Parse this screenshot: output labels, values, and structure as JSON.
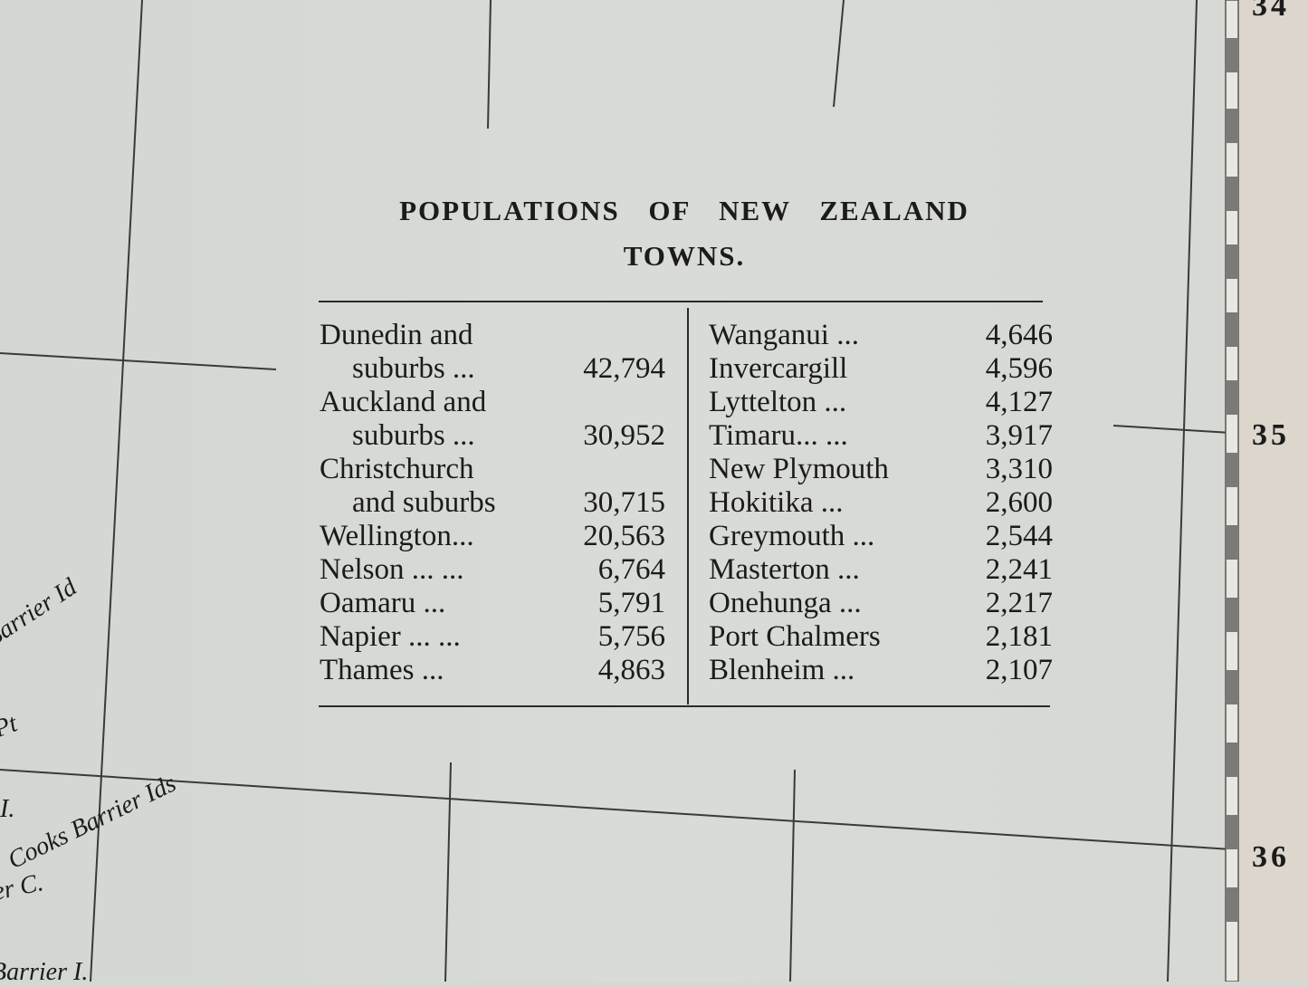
{
  "table": {
    "title_line1": "POPULATIONS OF NEW ZEALAND",
    "title_line2": "TOWNS.",
    "left": [
      {
        "lines": [
          "Dunedin and",
          "suburbs ..."
        ],
        "value": "42,794"
      },
      {
        "lines": [
          "Auckland and",
          "suburbs ..."
        ],
        "value": "30,952"
      },
      {
        "lines": [
          "Christchurch",
          "and suburbs"
        ],
        "value": "30,715"
      },
      {
        "lines": [
          "Wellington..."
        ],
        "value": "20,563"
      },
      {
        "lines": [
          "Nelson ...     ..."
        ],
        "value": "6,764"
      },
      {
        "lines": [
          "Oamaru          ..."
        ],
        "value": "5,791"
      },
      {
        "lines": [
          "Napier ...      ..."
        ],
        "value": "5,756"
      },
      {
        "lines": [
          "Thames          ..."
        ],
        "value": "4,863"
      }
    ],
    "right": [
      {
        "lines": [
          "Wanganui ..."
        ],
        "value": "4,646"
      },
      {
        "lines": [
          "Invercargill"
        ],
        "value": "4,596"
      },
      {
        "lines": [
          "Lyttelton   ..."
        ],
        "value": "4,127"
      },
      {
        "lines": [
          "Timaru...    ..."
        ],
        "value": "3,917"
      },
      {
        "lines": [
          "New Plymouth"
        ],
        "value": "3,310"
      },
      {
        "lines": [
          "Hokitika     ..."
        ],
        "value": "2,600"
      },
      {
        "lines": [
          "Greymouth ..."
        ],
        "value": "2,544"
      },
      {
        "lines": [
          "Masterton  ..."
        ],
        "value": "2,241"
      },
      {
        "lines": [
          "Onehunga  ..."
        ],
        "value": "2,217"
      },
      {
        "lines": [
          "Port Chalmers"
        ],
        "value": "2,181"
      },
      {
        "lines": [
          "Blenheim    ..."
        ],
        "value": "2,107"
      }
    ]
  },
  "latitude_labels": [
    "34",
    "35",
    "36"
  ],
  "map_labels": [
    "Barrier Id",
    "Pt",
    "I.",
    "Cooks Barrier Ids",
    "er C.",
    "Barrier I."
  ]
}
